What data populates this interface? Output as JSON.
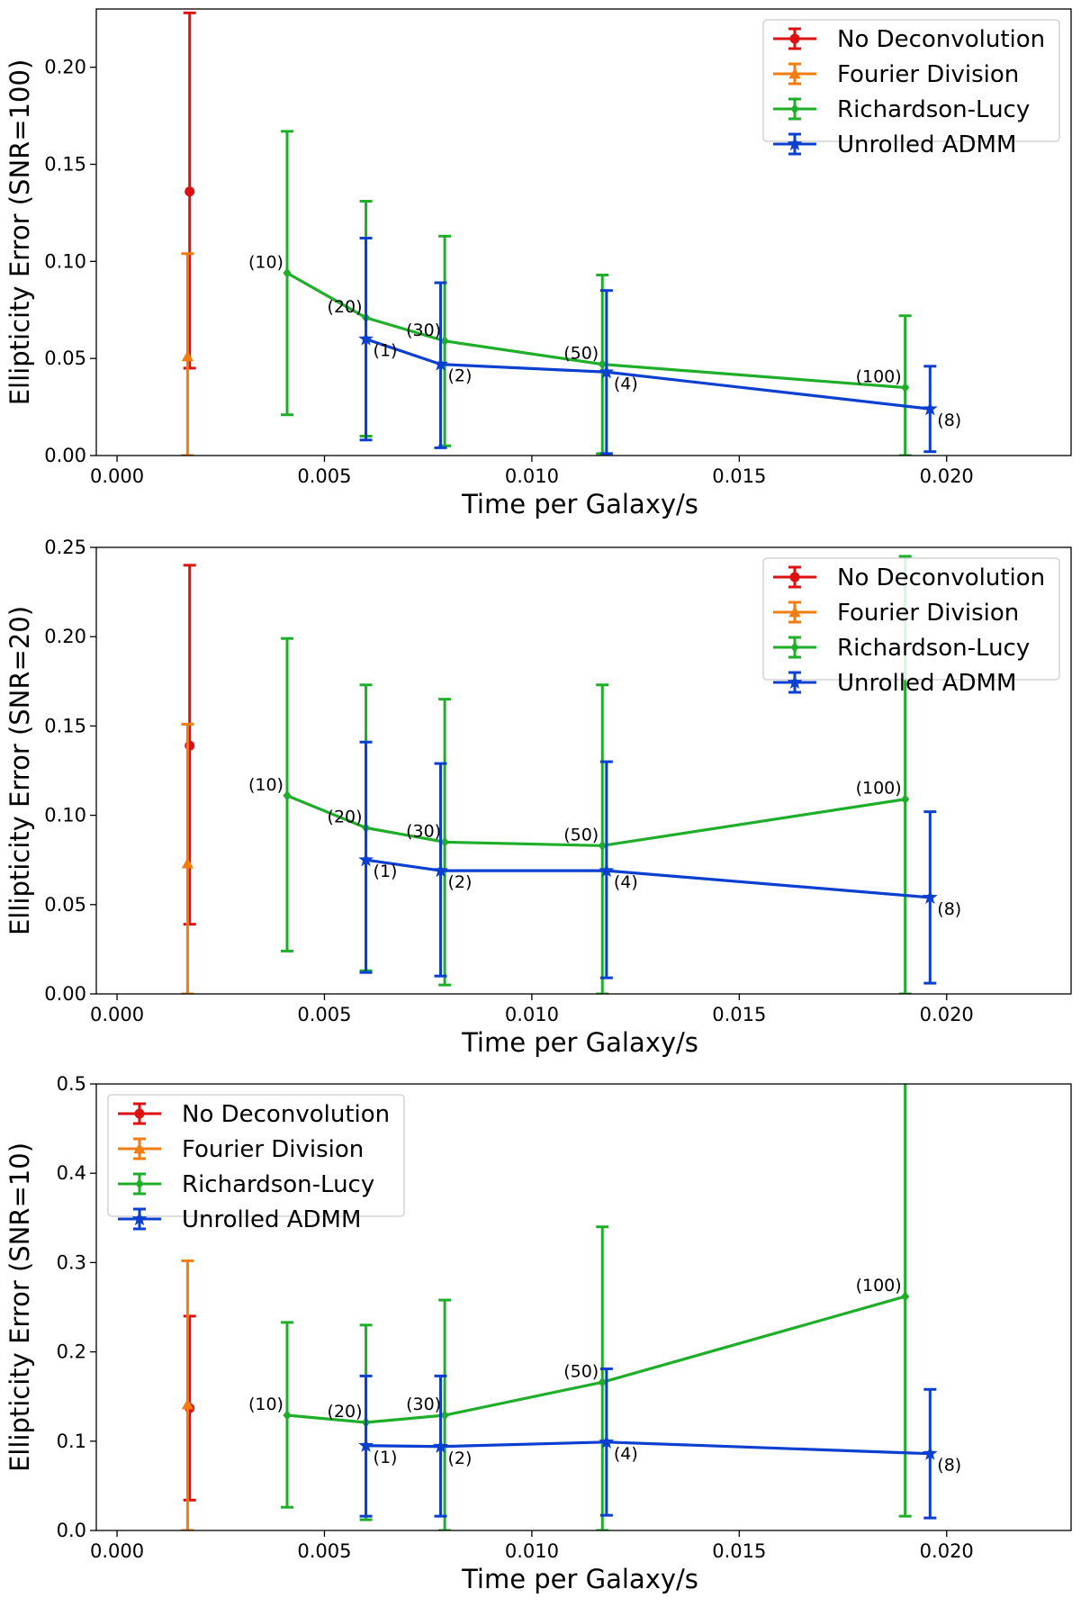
{
  "chart_data": [
    {
      "type": "line",
      "xlabel": "Time per Galaxy/s",
      "ylabel": "Ellipticity Error (SNR=100)",
      "xlim": [
        -0.0005,
        0.023
      ],
      "ylim": [
        0,
        0.23
      ],
      "xticks": [
        0.0,
        0.005,
        0.01,
        0.015,
        0.02
      ],
      "xtick_labels": [
        "0.000",
        "0.005",
        "0.010",
        "0.015",
        "0.020"
      ],
      "yticks": [
        0.0,
        0.05,
        0.1,
        0.15,
        0.2
      ],
      "ytick_labels": [
        "0.00",
        "0.05",
        "0.10",
        "0.15",
        "0.20"
      ],
      "legend_position": "top-right",
      "grid": false,
      "series": [
        {
          "name": "No Deconvolution",
          "color": "#dd1111",
          "marker": "circle",
          "points": [
            {
              "x": 0.00175,
              "y": 0.136,
              "yerr_low": 0.045,
              "yerr_high": 0.228
            }
          ]
        },
        {
          "name": "Fourier Division",
          "color": "#f07c12",
          "marker": "triangle",
          "points": [
            {
              "x": 0.0017,
              "y": 0.051,
              "yerr_low": 0.0,
              "yerr_high": 0.104
            }
          ]
        },
        {
          "name": "Richardson-Lucy",
          "color": "#1fae2a",
          "marker": "diamond",
          "points": [
            {
              "x": 0.0041,
              "y": 0.094,
              "yerr_low": 0.021,
              "yerr_high": 0.167,
              "label": "(10)"
            },
            {
              "x": 0.006,
              "y": 0.071,
              "yerr_low": 0.01,
              "yerr_high": 0.131,
              "label": "(20)"
            },
            {
              "x": 0.0079,
              "y": 0.059,
              "yerr_low": 0.005,
              "yerr_high": 0.113,
              "label": "(30)"
            },
            {
              "x": 0.0117,
              "y": 0.047,
              "yerr_low": 0.001,
              "yerr_high": 0.093,
              "label": "(50)"
            },
            {
              "x": 0.019,
              "y": 0.035,
              "yerr_low": 0.0,
              "yerr_high": 0.072,
              "label": "(100)"
            }
          ]
        },
        {
          "name": "Unrolled ADMM",
          "color": "#0b3fd0",
          "marker": "star",
          "points": [
            {
              "x": 0.006,
              "y": 0.06,
              "yerr_low": 0.008,
              "yerr_high": 0.112,
              "label": "(1)"
            },
            {
              "x": 0.0078,
              "y": 0.047,
              "yerr_low": 0.004,
              "yerr_high": 0.089,
              "label": "(2)"
            },
            {
              "x": 0.0118,
              "y": 0.043,
              "yerr_low": 0.001,
              "yerr_high": 0.085,
              "label": "(4)"
            },
            {
              "x": 0.0196,
              "y": 0.024,
              "yerr_low": 0.002,
              "yerr_high": 0.046,
              "label": "(8)"
            }
          ]
        }
      ]
    },
    {
      "type": "line",
      "xlabel": "Time per Galaxy/s",
      "ylabel": "Ellipticity Error (SNR=20)",
      "xlim": [
        -0.0005,
        0.023
      ],
      "ylim": [
        0,
        0.25
      ],
      "xticks": [
        0.0,
        0.005,
        0.01,
        0.015,
        0.02
      ],
      "xtick_labels": [
        "0.000",
        "0.005",
        "0.010",
        "0.015",
        "0.020"
      ],
      "yticks": [
        0.0,
        0.05,
        0.1,
        0.15,
        0.2,
        0.25
      ],
      "ytick_labels": [
        "0.00",
        "0.05",
        "0.10",
        "0.15",
        "0.20",
        "0.25"
      ],
      "legend_position": "top-right",
      "grid": false,
      "series": [
        {
          "name": "No Deconvolution",
          "color": "#dd1111",
          "marker": "circle",
          "points": [
            {
              "x": 0.00175,
              "y": 0.139,
              "yerr_low": 0.039,
              "yerr_high": 0.24
            }
          ]
        },
        {
          "name": "Fourier Division",
          "color": "#f07c12",
          "marker": "triangle",
          "points": [
            {
              "x": 0.0017,
              "y": 0.073,
              "yerr_low": 0.0,
              "yerr_high": 0.151
            }
          ]
        },
        {
          "name": "Richardson-Lucy",
          "color": "#1fae2a",
          "marker": "diamond",
          "points": [
            {
              "x": 0.0041,
              "y": 0.111,
              "yerr_low": 0.024,
              "yerr_high": 0.199,
              "label": "(10)"
            },
            {
              "x": 0.006,
              "y": 0.093,
              "yerr_low": 0.013,
              "yerr_high": 0.173,
              "label": "(20)"
            },
            {
              "x": 0.0079,
              "y": 0.085,
              "yerr_low": 0.005,
              "yerr_high": 0.165,
              "label": "(30)"
            },
            {
              "x": 0.0117,
              "y": 0.083,
              "yerr_low": 0.0,
              "yerr_high": 0.173,
              "label": "(50)"
            },
            {
              "x": 0.019,
              "y": 0.109,
              "yerr_low": 0.0,
              "yerr_high": 0.245,
              "label": "(100)"
            }
          ]
        },
        {
          "name": "Unrolled ADMM",
          "color": "#0b3fd0",
          "marker": "star",
          "points": [
            {
              "x": 0.006,
              "y": 0.075,
              "yerr_low": 0.012,
              "yerr_high": 0.141,
              "label": "(1)"
            },
            {
              "x": 0.0078,
              "y": 0.069,
              "yerr_low": 0.01,
              "yerr_high": 0.129,
              "label": "(2)"
            },
            {
              "x": 0.0118,
              "y": 0.069,
              "yerr_low": 0.009,
              "yerr_high": 0.13,
              "label": "(4)"
            },
            {
              "x": 0.0196,
              "y": 0.054,
              "yerr_low": 0.006,
              "yerr_high": 0.102,
              "label": "(8)"
            }
          ]
        }
      ]
    },
    {
      "type": "line",
      "xlabel": "Time per Galaxy/s",
      "ylabel": "Ellipticity Error (SNR=10)",
      "xlim": [
        -0.0005,
        0.023
      ],
      "ylim": [
        0,
        0.5
      ],
      "xticks": [
        0.0,
        0.005,
        0.01,
        0.015,
        0.02
      ],
      "xtick_labels": [
        "0.000",
        "0.005",
        "0.010",
        "0.015",
        "0.020"
      ],
      "yticks": [
        0.0,
        0.1,
        0.2,
        0.3,
        0.4,
        0.5
      ],
      "ytick_labels": [
        "0.0",
        "0.1",
        "0.2",
        "0.3",
        "0.4",
        "0.5"
      ],
      "legend_position": "top-left",
      "grid": false,
      "series": [
        {
          "name": "No Deconvolution",
          "color": "#dd1111",
          "marker": "circle",
          "points": [
            {
              "x": 0.00175,
              "y": 0.137,
              "yerr_low": 0.034,
              "yerr_high": 0.24
            }
          ]
        },
        {
          "name": "Fourier Division",
          "color": "#f07c12",
          "marker": "triangle",
          "points": [
            {
              "x": 0.0017,
              "y": 0.141,
              "yerr_low": 0.0,
              "yerr_high": 0.302
            }
          ]
        },
        {
          "name": "Richardson-Lucy",
          "color": "#1fae2a",
          "marker": "diamond",
          "points": [
            {
              "x": 0.0041,
              "y": 0.129,
              "yerr_low": 0.026,
              "yerr_high": 0.233,
              "label": "(10)"
            },
            {
              "x": 0.006,
              "y": 0.121,
              "yerr_low": 0.012,
              "yerr_high": 0.23,
              "label": "(20)"
            },
            {
              "x": 0.0079,
              "y": 0.129,
              "yerr_low": 0.0,
              "yerr_high": 0.258,
              "label": "(30)"
            },
            {
              "x": 0.0117,
              "y": 0.166,
              "yerr_low": 0.0,
              "yerr_high": 0.34,
              "label": "(50)"
            },
            {
              "x": 0.019,
              "y": 0.262,
              "yerr_low": 0.016,
              "yerr_high": 0.51,
              "label": "(100)"
            }
          ]
        },
        {
          "name": "Unrolled ADMM",
          "color": "#0b3fd0",
          "marker": "star",
          "points": [
            {
              "x": 0.006,
              "y": 0.095,
              "yerr_low": 0.016,
              "yerr_high": 0.173,
              "label": "(1)"
            },
            {
              "x": 0.0078,
              "y": 0.094,
              "yerr_low": 0.016,
              "yerr_high": 0.173,
              "label": "(2)"
            },
            {
              "x": 0.0118,
              "y": 0.099,
              "yerr_low": 0.017,
              "yerr_high": 0.181,
              "label": "(4)"
            },
            {
              "x": 0.0196,
              "y": 0.086,
              "yerr_low": 0.014,
              "yerr_high": 0.158,
              "label": "(8)"
            }
          ]
        }
      ]
    }
  ]
}
